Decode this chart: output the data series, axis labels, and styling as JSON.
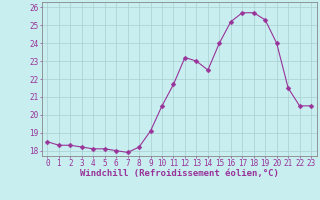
{
  "x": [
    0,
    1,
    2,
    3,
    4,
    5,
    6,
    7,
    8,
    9,
    10,
    11,
    12,
    13,
    14,
    15,
    16,
    17,
    18,
    19,
    20,
    21,
    22,
    23
  ],
  "y": [
    18.5,
    18.3,
    18.3,
    18.2,
    18.1,
    18.1,
    18.0,
    17.9,
    18.2,
    19.1,
    20.5,
    21.7,
    23.2,
    23.0,
    22.5,
    24.0,
    25.2,
    25.7,
    25.7,
    25.3,
    24.0,
    21.5,
    20.5,
    20.5
  ],
  "line_color": "#993399",
  "marker_color": "#993399",
  "bg_color": "#c8eef0",
  "grid_color": "#aacfcf",
  "xlabel": "Windchill (Refroidissement éolien,°C)",
  "ylim": [
    17.7,
    26.3
  ],
  "yticks": [
    18,
    19,
    20,
    21,
    22,
    23,
    24,
    25,
    26
  ],
  "xlim": [
    -0.5,
    23.5
  ],
  "xticks": [
    0,
    1,
    2,
    3,
    4,
    5,
    6,
    7,
    8,
    9,
    10,
    11,
    12,
    13,
    14,
    15,
    16,
    17,
    18,
    19,
    20,
    21,
    22,
    23
  ],
  "tick_color": "#993399",
  "axis_color": "#888888",
  "label_fontsize": 6.5,
  "tick_fontsize": 5.5,
  "xlabel_fontsize": 6.5
}
